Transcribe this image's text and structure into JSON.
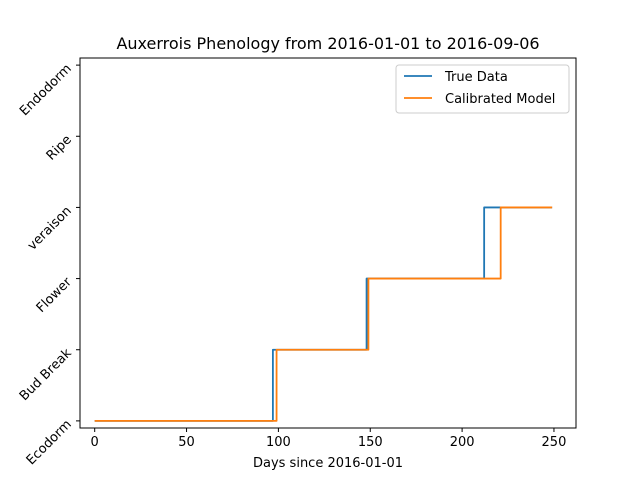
{
  "chart_data": {
    "type": "line",
    "title": "Auxerrois Phenology from 2016-01-01 to 2016-09-06",
    "xlabel": "Days since 2016-01-01",
    "ylabel": "",
    "xlim": [
      -8,
      262
    ],
    "ylim": [
      -0.1,
      5.1
    ],
    "x_ticks": [
      0,
      50,
      100,
      150,
      200,
      250
    ],
    "y_ticks": [
      0,
      1,
      2,
      3,
      4,
      5
    ],
    "y_tick_labels": [
      "Ecodorm",
      "Bud Break",
      "Flower",
      "veraison",
      "Ripe",
      "Endodorm"
    ],
    "grid": false,
    "legend_position": "top-right",
    "series": [
      {
        "name": "True Data",
        "color": "#1f77b4",
        "x": [
          0,
          97,
          97,
          148,
          148,
          212,
          212,
          249
        ],
        "y": [
          0,
          0,
          1,
          1,
          2,
          2,
          3,
          3
        ]
      },
      {
        "name": "Calibrated Model",
        "color": "#ff7f0e",
        "x": [
          0,
          99,
          99,
          149,
          149,
          221,
          221,
          249
        ],
        "y": [
          0,
          0,
          1,
          1,
          2,
          2,
          3,
          3
        ]
      }
    ]
  }
}
